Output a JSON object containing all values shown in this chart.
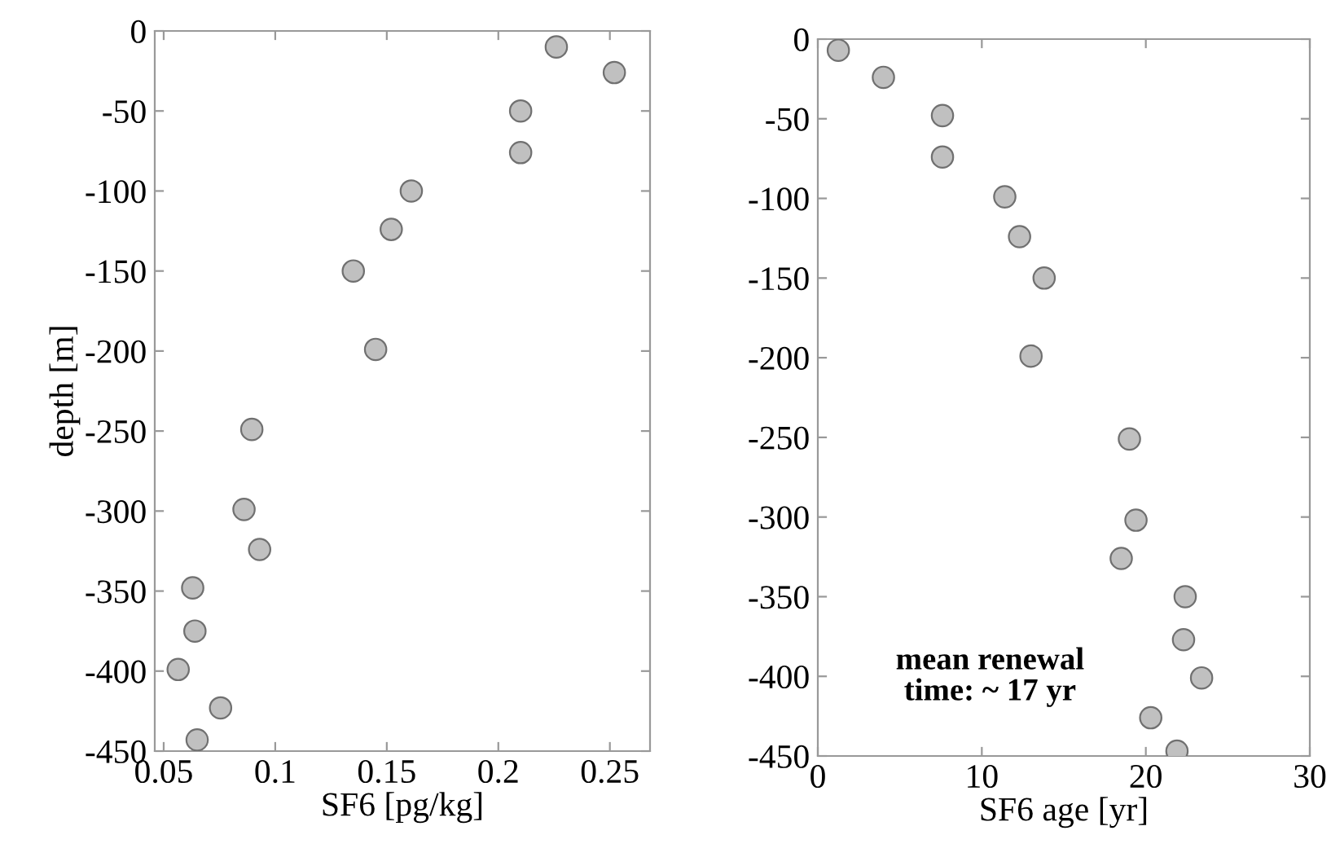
{
  "chart_data": [
    {
      "type": "scatter",
      "xlabel": "SF6 [pg/kg]",
      "ylabel": "depth [m]",
      "xlim": [
        0.046,
        0.268
      ],
      "ylim": [
        -450,
        0
      ],
      "xticks": [
        0.05,
        0.1,
        0.15,
        0.2,
        0.25
      ],
      "yticks": [
        0,
        -50,
        -100,
        -150,
        -200,
        -250,
        -300,
        -350,
        -400,
        -450
      ],
      "marker": "circle",
      "grid": false,
      "series": [
        {
          "color": "#c0c0c0",
          "x": [
            0.226,
            0.252,
            0.21,
            0.21,
            0.161,
            0.152,
            0.135,
            0.145,
            0.0895,
            0.086,
            0.093,
            0.063,
            0.064,
            0.0565,
            0.0755,
            0.065
          ],
          "values": [
            -10,
            -26,
            -50,
            -76,
            -100,
            -124,
            -150,
            -199,
            -249,
            -299,
            -324,
            -348,
            -375,
            -399,
            -423,
            -443
          ]
        }
      ]
    },
    {
      "type": "scatter",
      "xlabel": "SF6 age [yr]",
      "xlim": [
        0,
        30
      ],
      "ylim": [
        -450,
        0
      ],
      "xticks": [
        0,
        10,
        20,
        30
      ],
      "yticks": [
        0,
        -50,
        -100,
        -150,
        -200,
        -250,
        -300,
        -350,
        -400,
        -450
      ],
      "marker": "circle",
      "grid": false,
      "annotations": [
        "mean renewal\ntime: ~ 17 yr"
      ],
      "series": [
        {
          "color": "#c0c0c0",
          "x": [
            1.25,
            4.0,
            7.6,
            7.6,
            11.4,
            12.3,
            13.8,
            13.0,
            19.0,
            19.4,
            18.5,
            22.4,
            22.3,
            23.4,
            20.3,
            21.9
          ],
          "values": [
            -7,
            -24,
            -48,
            -74,
            -99,
            -124,
            -150,
            -199,
            -251,
            -302,
            -326,
            -350,
            -377,
            -401,
            -426,
            -447
          ]
        }
      ]
    }
  ]
}
